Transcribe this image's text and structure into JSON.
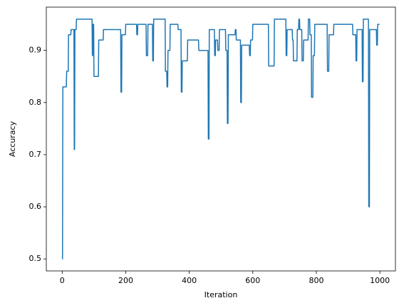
{
  "chart_data": {
    "type": "line",
    "xlabel": "Iteration",
    "ylabel": "Accuracy",
    "x": [
      0,
      1,
      2,
      13,
      14,
      19,
      20,
      27,
      28,
      37,
      38,
      39,
      40,
      44,
      45,
      94,
      95,
      96,
      97,
      99,
      100,
      114,
      115,
      129,
      130,
      184,
      185,
      187,
      188,
      199,
      200,
      234,
      235,
      237,
      238,
      264,
      265,
      269,
      270,
      284,
      285,
      287,
      288,
      324,
      325,
      329,
      330,
      332,
      333,
      339,
      340,
      364,
      365,
      374,
      375,
      377,
      378,
      394,
      395,
      429,
      430,
      459,
      460,
      462,
      463,
      479,
      480,
      482,
      483,
      489,
      490,
      494,
      495,
      514,
      515,
      519,
      520,
      522,
      523,
      544,
      545,
      547,
      548,
      561,
      562,
      564,
      565,
      589,
      590,
      592,
      593,
      599,
      600,
      649,
      650,
      667,
      668,
      704,
      705,
      707,
      708,
      724,
      725,
      727,
      728,
      739,
      740,
      744,
      745,
      747,
      748,
      754,
      755,
      759,
      760,
      774,
      775,
      779,
      780,
      784,
      785,
      789,
      790,
      794,
      795,
      834,
      835,
      839,
      840,
      854,
      855,
      914,
      915,
      924,
      925,
      927,
      928,
      944,
      945,
      947,
      948,
      964,
      965,
      967,
      968,
      989,
      990,
      992,
      993,
      999
    ],
    "series": [
      {
        "color": "#1f77b4",
        "values": [
          0.5,
          0.5,
          0.83,
          0.83,
          0.86,
          0.86,
          0.93,
          0.93,
          0.94,
          0.94,
          0.71,
          0.71,
          0.94,
          0.94,
          0.96,
          0.96,
          0.89,
          0.89,
          0.95,
          0.95,
          0.85,
          0.85,
          0.92,
          0.92,
          0.94,
          0.94,
          0.82,
          0.82,
          0.93,
          0.93,
          0.95,
          0.95,
          0.93,
          0.93,
          0.95,
          0.95,
          0.89,
          0.89,
          0.95,
          0.95,
          0.88,
          0.88,
          0.96,
          0.96,
          0.86,
          0.86,
          0.83,
          0.83,
          0.9,
          0.9,
          0.95,
          0.95,
          0.94,
          0.94,
          0.82,
          0.82,
          0.88,
          0.88,
          0.92,
          0.92,
          0.9,
          0.9,
          0.73,
          0.73,
          0.94,
          0.94,
          0.89,
          0.89,
          0.92,
          0.92,
          0.9,
          0.9,
          0.94,
          0.94,
          0.9,
          0.9,
          0.76,
          0.76,
          0.93,
          0.93,
          0.94,
          0.94,
          0.92,
          0.92,
          0.8,
          0.8,
          0.91,
          0.91,
          0.89,
          0.89,
          0.92,
          0.92,
          0.95,
          0.95,
          0.87,
          0.87,
          0.96,
          0.96,
          0.89,
          0.89,
          0.94,
          0.94,
          0.92,
          0.92,
          0.88,
          0.88,
          0.94,
          0.94,
          0.96,
          0.96,
          0.94,
          0.94,
          0.88,
          0.88,
          0.92,
          0.92,
          0.96,
          0.96,
          0.93,
          0.93,
          0.81,
          0.81,
          0.89,
          0.89,
          0.95,
          0.95,
          0.86,
          0.86,
          0.93,
          0.93,
          0.95,
          0.95,
          0.93,
          0.93,
          0.88,
          0.88,
          0.94,
          0.94,
          0.84,
          0.84,
          0.96,
          0.96,
          0.6,
          0.6,
          0.94,
          0.94,
          0.91,
          0.91,
          0.95,
          0.95
        ]
      }
    ],
    "xlim": [
      -50,
      1049
    ],
    "xticks": [
      0,
      200,
      400,
      600,
      800,
      1000
    ],
    "ylim": [
      0.477,
      0.983
    ],
    "yticks": [
      0.5,
      0.6,
      0.7,
      0.8,
      0.9
    ]
  }
}
